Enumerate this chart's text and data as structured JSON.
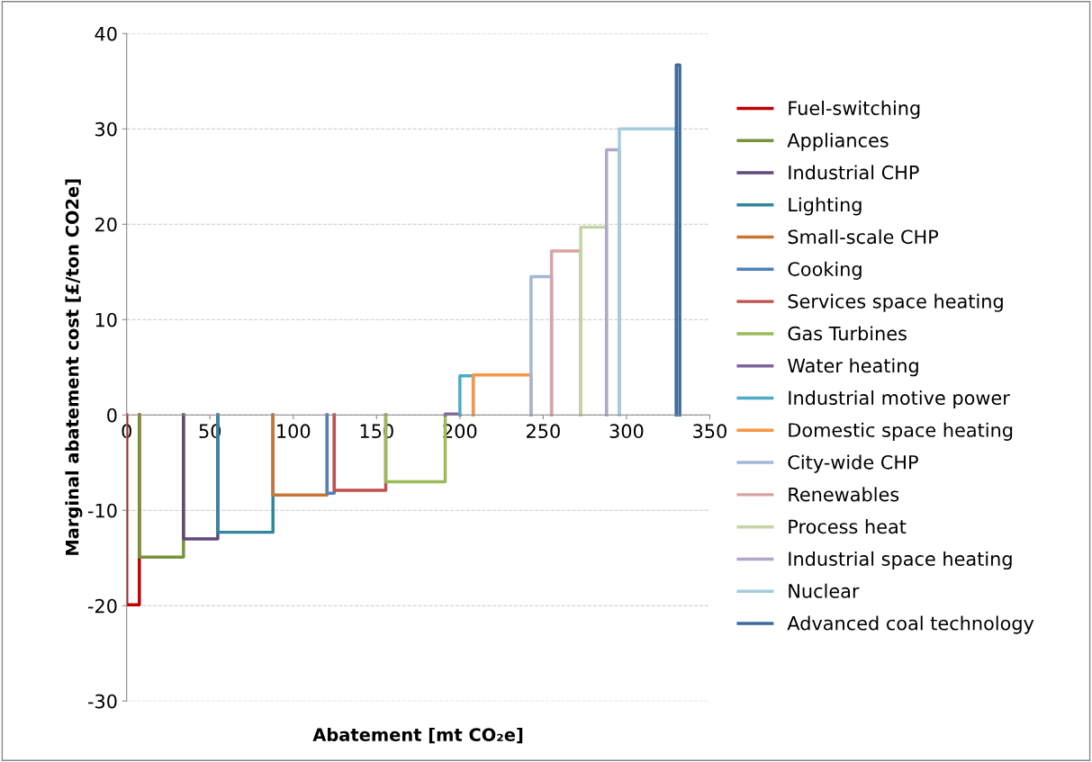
{
  "chart_data": {
    "type": "line",
    "xlabel": "Abatement [mt CO₂e]",
    "ylabel": "Marginal abatement cost [£/ton CO2e]",
    "xlim": [
      0,
      350
    ],
    "xticks": [
      0,
      50,
      100,
      150,
      200,
      250,
      300,
      350
    ],
    "ylim": [
      -30,
      40
    ],
    "yticks": [
      -30,
      -20,
      -10,
      0,
      10,
      20,
      30,
      40
    ],
    "grid": "y",
    "legend": "right",
    "marker": "none",
    "line_style": "solid",
    "series": [
      {
        "name": "Fuel-switching",
        "color": "#c00000",
        "x": [
          0,
          0,
          7.6,
          7.6
        ],
        "values": [
          0,
          -19.9,
          -19.9,
          0
        ]
      },
      {
        "name": "Appliances",
        "color": "#77933c",
        "x": [
          7.6,
          7.6,
          34.1,
          34.1
        ],
        "values": [
          0,
          -14.9,
          -14.9,
          0
        ]
      },
      {
        "name": "Industrial CHP",
        "color": "#604a7b",
        "x": [
          34.1,
          34.1,
          54.7,
          54.7
        ],
        "values": [
          0,
          -13.0,
          -13.0,
          0
        ]
      },
      {
        "name": "Lighting",
        "color": "#31859c",
        "x": [
          54.7,
          54.7,
          87.8,
          87.8
        ],
        "values": [
          0,
          -12.3,
          -12.3,
          0
        ]
      },
      {
        "name": "Small-scale CHP",
        "color": "#c87533",
        "x": [
          87.8,
          87.8,
          120.3,
          120.3
        ],
        "values": [
          0,
          -8.4,
          -8.4,
          0
        ]
      },
      {
        "name": "Cooking",
        "color": "#4f81bd",
        "x": [
          120.3,
          120.3,
          124.6,
          124.6
        ],
        "values": [
          0,
          -8.2,
          -8.2,
          0
        ]
      },
      {
        "name": "Services space heating",
        "color": "#c0504d",
        "x": [
          124.6,
          124.6,
          155.5,
          155.5
        ],
        "values": [
          0,
          -7.9,
          -7.9,
          0
        ]
      },
      {
        "name": "Gas Turbines",
        "color": "#9bbb59",
        "x": [
          155.5,
          155.5,
          191.2,
          191.2
        ],
        "values": [
          0,
          -7.0,
          -7.0,
          0
        ]
      },
      {
        "name": "Water heating",
        "color": "#8064a2",
        "x": [
          191.2,
          191.2,
          200,
          200
        ],
        "values": [
          0,
          0.1,
          0.1,
          0
        ]
      },
      {
        "name": "Industrial motive power",
        "color": "#4bacc6",
        "x": [
          200,
          200,
          208,
          208
        ],
        "values": [
          0,
          4.1,
          4.1,
          0
        ]
      },
      {
        "name": "Domestic space heating",
        "color": "#f79646",
        "x": [
          208,
          208,
          242.7,
          242.7
        ],
        "values": [
          0,
          4.2,
          4.2,
          0
        ]
      },
      {
        "name": "City-wide CHP",
        "color": "#a5b6d6",
        "x": [
          242.7,
          242.7,
          255,
          255
        ],
        "values": [
          0,
          14.5,
          14.5,
          0
        ]
      },
      {
        "name": "Renewables",
        "color": "#d9a3a1",
        "x": [
          255,
          255,
          272.5,
          272.5
        ],
        "values": [
          0,
          17.2,
          17.2,
          0
        ]
      },
      {
        "name": "Process heat",
        "color": "#c3d5a5",
        "x": [
          272.5,
          272.5,
          288,
          288
        ],
        "values": [
          0,
          19.7,
          19.7,
          0
        ]
      },
      {
        "name": "Industrial space heating",
        "color": "#b3a7c9",
        "x": [
          288,
          288,
          295.7,
          295.7
        ],
        "values": [
          0,
          27.8,
          27.8,
          0
        ]
      },
      {
        "name": "Nuclear",
        "color": "#a5cddb",
        "x": [
          295.7,
          295.7,
          329.9,
          329.9
        ],
        "values": [
          0,
          30.0,
          30.0,
          0
        ]
      },
      {
        "name": "Advanced coal technology",
        "color": "#3e6a9d",
        "x": [
          329.9,
          329.9,
          332,
          332
        ],
        "values": [
          0,
          36.7,
          36.7,
          0
        ]
      }
    ]
  }
}
